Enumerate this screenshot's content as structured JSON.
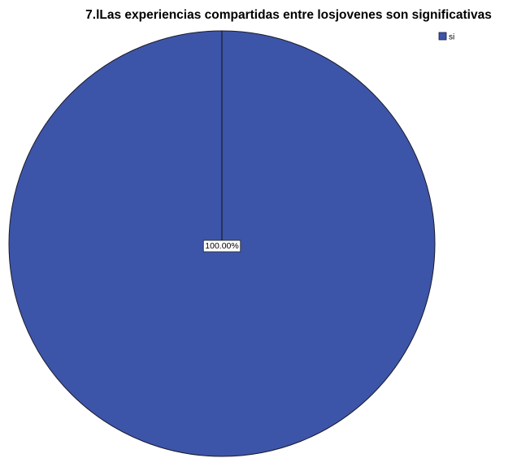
{
  "chart_data": {
    "type": "pie",
    "title": "7.lLas experiencias compartidas entre losjovenes son significativas",
    "categories": [
      "si"
    ],
    "values": [
      100
    ],
    "data_labels": [
      "100.00%"
    ],
    "series": [
      {
        "name": "si",
        "values": [
          100
        ]
      }
    ],
    "colors": [
      "#3d55a8"
    ],
    "legend": {
      "position": "top-right",
      "entries": [
        "si"
      ]
    }
  }
}
